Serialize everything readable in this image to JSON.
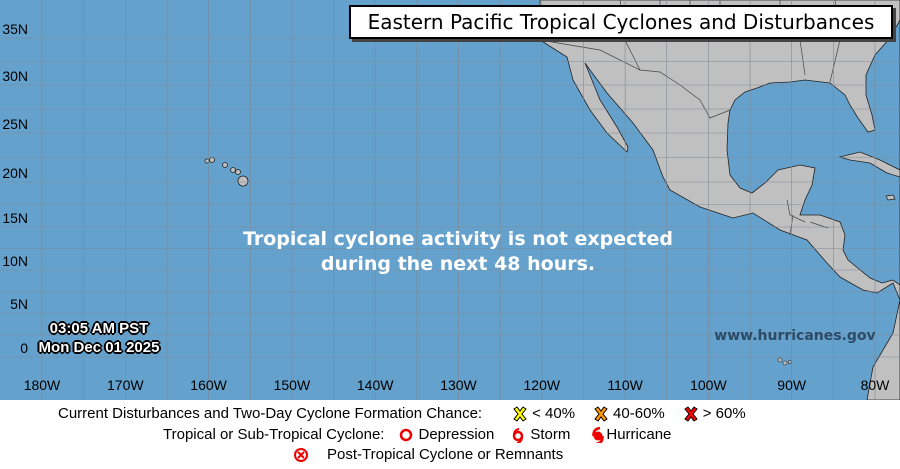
{
  "map": {
    "title": "Eastern Pacific Tropical Cyclones and Disturbances",
    "message_line1": "Tropical cyclone activity is not expected",
    "message_line2": "during the next 48 hours.",
    "time": "03:05 AM PST",
    "date": "Mon Dec 01 2025",
    "website": "www.hurricanes.gov",
    "lat_labels": [
      "35N",
      "30N",
      "25N",
      "20N",
      "15N",
      "10N",
      "5N",
      "0"
    ],
    "lon_labels": [
      "180W",
      "170W",
      "160W",
      "150W",
      "140W",
      "130W",
      "120W",
      "110W",
      "100W",
      "90W",
      "80W"
    ],
    "colors": {
      "ocean": "#64a1cc",
      "land": "#c0c0c0",
      "grid": "#808a94"
    }
  },
  "legend": {
    "disturbances_label": "Current Disturbances and Two-Day Cyclone Formation Chance:",
    "low": {
      "label": "< 40%",
      "color": "#ffff00",
      "icon": "x-marker-icon"
    },
    "medium": {
      "label": "40-60%",
      "color": "#ff9900",
      "icon": "x-marker-icon"
    },
    "high": {
      "label": "> 60%",
      "color": "#ff0000",
      "icon": "x-marker-icon"
    },
    "cyclone_label": "Tropical or Sub-Tropical Cyclone:",
    "depression": "Depression",
    "storm": "Storm",
    "hurricane": "Hurricane",
    "post_tropical": "Post-Tropical Cyclone or Remnants"
  }
}
